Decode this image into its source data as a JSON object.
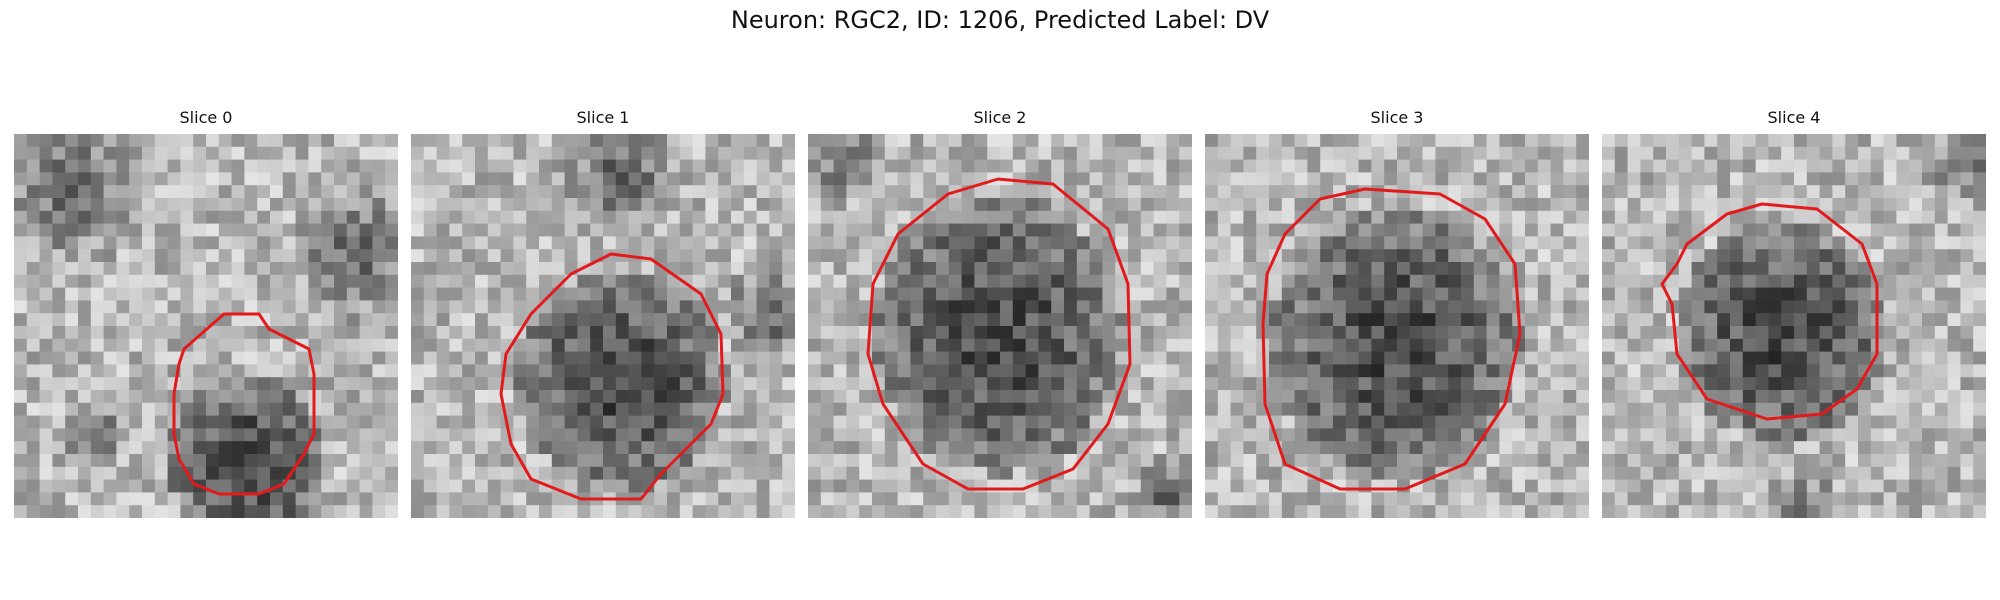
{
  "figure": {
    "title": "Neuron: RGC2, ID: 1206, Predicted Label: DV"
  },
  "slices": [
    {
      "title": "Slice 0"
    },
    {
      "title": "Slice 1"
    },
    {
      "title": "Slice 2"
    },
    {
      "title": "Slice 3"
    },
    {
      "title": "Slice 4"
    }
  ],
  "colors": {
    "contour": "#e31a1c",
    "background": "#ffffff"
  }
}
